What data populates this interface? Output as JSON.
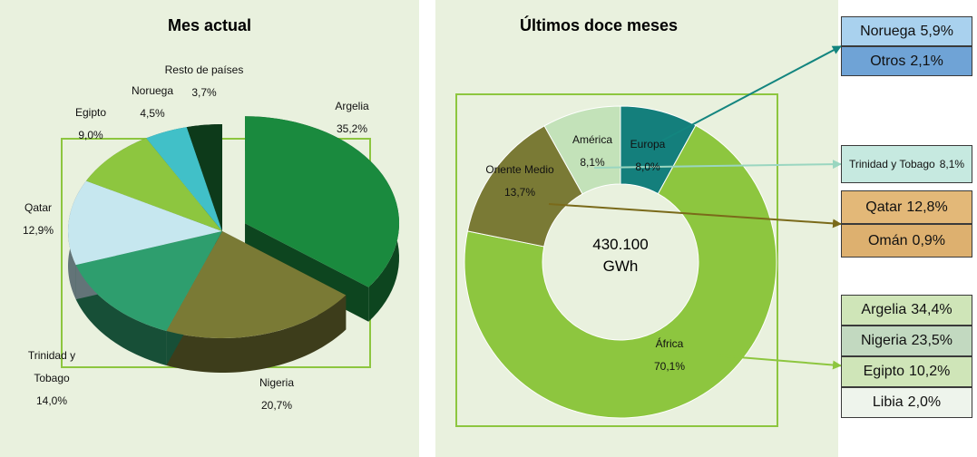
{
  "chart_data": [
    {
      "type": "pie3d",
      "title": "Mes actual",
      "categories": [
        "Argelia",
        "Nigeria",
        "Trinidad y Tobago",
        "Qatar",
        "Egipto",
        "Noruega",
        "Resto de países"
      ],
      "values": [
        35.2,
        20.7,
        14.0,
        12.9,
        9.0,
        4.5,
        3.7
      ],
      "value_labels": [
        "35,2%",
        "20,7%",
        "14,0%",
        "12,9%",
        "9,0%",
        "4,5%",
        "3,7%"
      ],
      "colors": [
        "#1a8a3e",
        "#7a7a35",
        "#2e9e6e",
        "#c6e7ef",
        "#8dc63f",
        "#41c0c8",
        "#0d3a1a"
      ]
    },
    {
      "type": "donut",
      "title": "Últimos doce meses",
      "categories": [
        "Europa",
        "África",
        "Oriente Medio",
        "América"
      ],
      "values": [
        8.0,
        70.1,
        13.7,
        8.1
      ],
      "value_labels": [
        "8,0%",
        "70,1%",
        "13,7%",
        "8,1%"
      ],
      "colors": [
        "#147f7c",
        "#8dc63f",
        "#7a7a35",
        "#c3e2b9"
      ],
      "center_label": "430.100 GWh",
      "breakdown": [
        [
          {
            "name": "Noruega",
            "value": 5.9,
            "value_label": "5,9%",
            "color": "#a9d1ee"
          },
          {
            "name": "Otros",
            "value": 2.1,
            "value_label": "2,1%",
            "color": "#6fa3d6"
          }
        ],
        [
          {
            "name": "Argelia",
            "value": 34.4,
            "value_label": "34,4%",
            "color": "#cfe5b8"
          },
          {
            "name": "Nigeria",
            "value": 23.5,
            "value_label": "23,5%",
            "color": "#c2d9c0"
          },
          {
            "name": "Egipto",
            "value": 10.2,
            "value_label": "10,2%",
            "color": "#cfe5b8"
          },
          {
            "name": "Libia",
            "value": 2.0,
            "value_label": "2,0%",
            "color": "#eef4ec"
          }
        ],
        [
          {
            "name": "Qatar",
            "value": 12.8,
            "value_label": "12,8%",
            "color": "#e3b878"
          },
          {
            "name": "Omán",
            "value": 0.9,
            "value_label": "0,9%",
            "color": "#ddb06f"
          }
        ],
        [
          {
            "name": "Trinidad y Tobago",
            "value": 8.1,
            "value_label": "8,1%",
            "color": "#c6e9e0"
          }
        ]
      ]
    }
  ]
}
